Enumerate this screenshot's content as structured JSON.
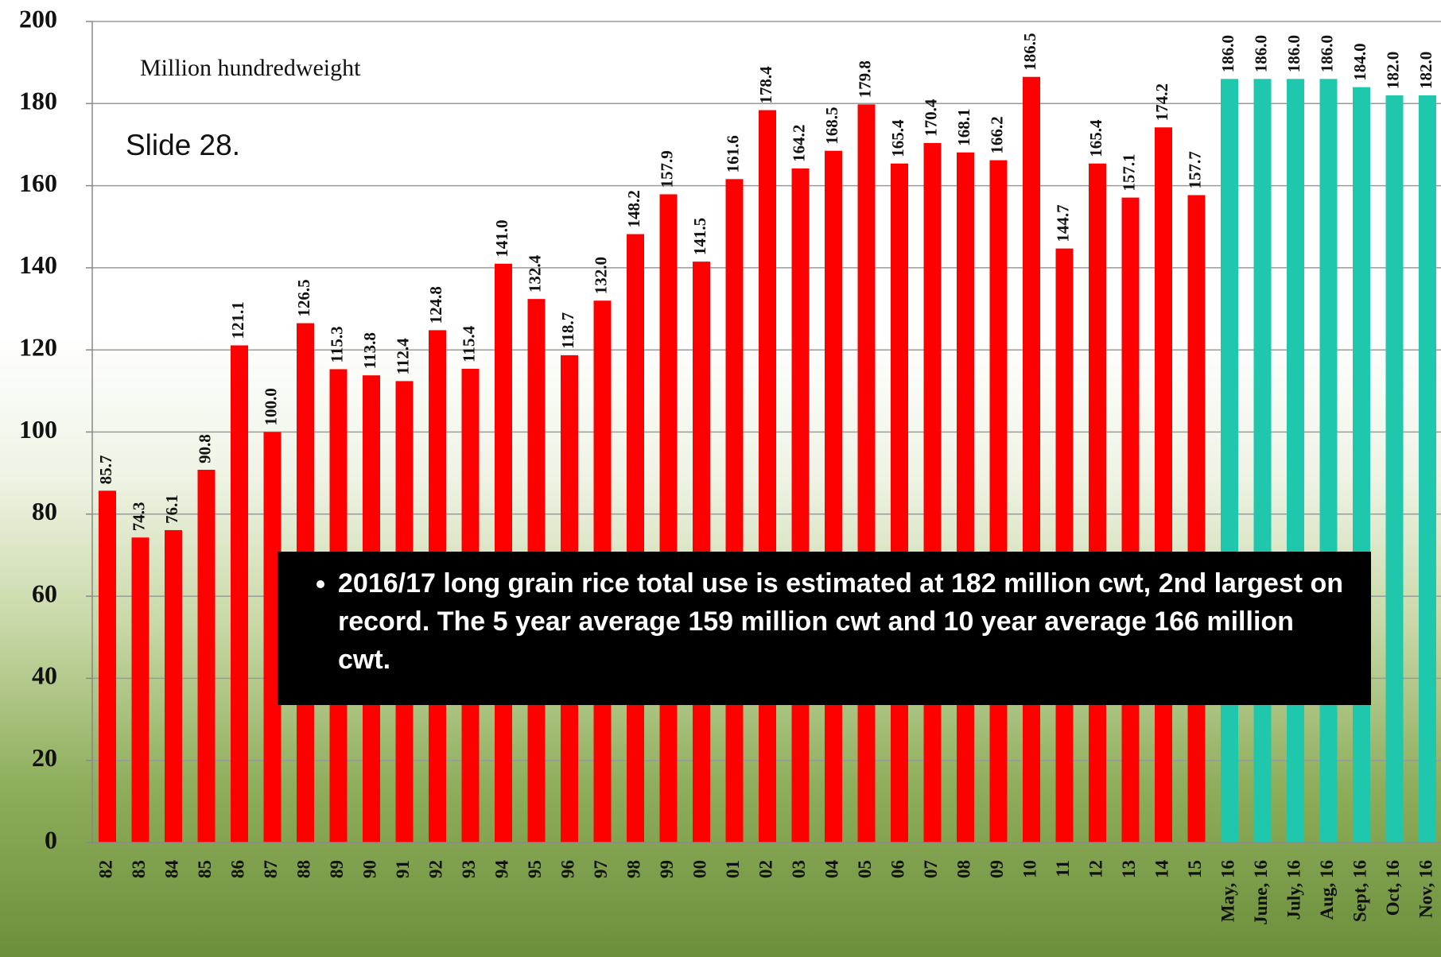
{
  "chart_data": {
    "type": "bar",
    "unit_label": "Million hundredweight",
    "slide_label": "Slide 28.",
    "callout": "2016/17 long grain rice total use is estimated at 182 million cwt, 2nd largest on record. The 5 year average 159 million cwt and 10 year average 166 million cwt.",
    "categories": [
      "82",
      "83",
      "84",
      "85",
      "86",
      "87",
      "88",
      "89",
      "90",
      "91",
      "92",
      "93",
      "94",
      "95",
      "96",
      "97",
      "98",
      "99",
      "00",
      "01",
      "02",
      "03",
      "04",
      "05",
      "06",
      "07",
      "08",
      "09",
      "10",
      "11",
      "12",
      "13",
      "14",
      "15",
      "May, 16",
      "June, 16",
      "July, 16",
      "Aug, 16",
      "Sept, 16",
      "Oct, 16",
      "Nov, 16"
    ],
    "values": [
      85.7,
      74.3,
      76.1,
      90.8,
      121.1,
      100.0,
      126.5,
      115.3,
      113.8,
      112.4,
      124.8,
      115.4,
      141.0,
      132.4,
      118.7,
      132.0,
      148.2,
      157.9,
      141.5,
      161.6,
      178.4,
      164.2,
      168.5,
      179.8,
      165.4,
      170.4,
      168.1,
      166.2,
      186.5,
      144.7,
      165.4,
      157.1,
      174.2,
      157.7,
      186.0,
      186.0,
      186.0,
      186.0,
      184.0,
      182.0,
      182.0
    ],
    "value_labels": [
      "85.7",
      "74.3",
      "76.1",
      "90.8",
      "121.1",
      "100.0",
      "126.5",
      "115.3",
      "113.8",
      "112.4",
      "124.8",
      "115.4",
      "141.0",
      "132.4",
      "118.7",
      "132.0",
      "148.2",
      "157.9",
      "141.5",
      "161.6",
      "178.4",
      "164.2",
      "168.5",
      "179.8",
      "165.4",
      "170.4",
      "168.1",
      "166.2",
      "186.5",
      "144.7",
      "165.4",
      "157.1",
      "174.2",
      "157.7",
      "186.0",
      "186.0",
      "186.0",
      "186.0",
      "184.0",
      "182.0",
      "182.0"
    ],
    "colors": [
      "#ff0000",
      "#ff0000",
      "#ff0000",
      "#ff0000",
      "#ff0000",
      "#ff0000",
      "#ff0000",
      "#ff0000",
      "#ff0000",
      "#ff0000",
      "#ff0000",
      "#ff0000",
      "#ff0000",
      "#ff0000",
      "#ff0000",
      "#ff0000",
      "#ff0000",
      "#ff0000",
      "#ff0000",
      "#ff0000",
      "#ff0000",
      "#ff0000",
      "#ff0000",
      "#ff0000",
      "#ff0000",
      "#ff0000",
      "#ff0000",
      "#ff0000",
      "#ff0000",
      "#ff0000",
      "#ff0000",
      "#ff0000",
      "#ff0000",
      "#ff0000",
      "#1fc7ad",
      "#1fc7ad",
      "#1fc7ad",
      "#1fc7ad",
      "#1fc7ad",
      "#1fc7ad",
      "#1fc7ad"
    ],
    "ylim": [
      0,
      200
    ],
    "yticks": [
      0,
      20,
      40,
      60,
      80,
      100,
      120,
      140,
      160,
      180,
      200
    ],
    "grid": true
  }
}
